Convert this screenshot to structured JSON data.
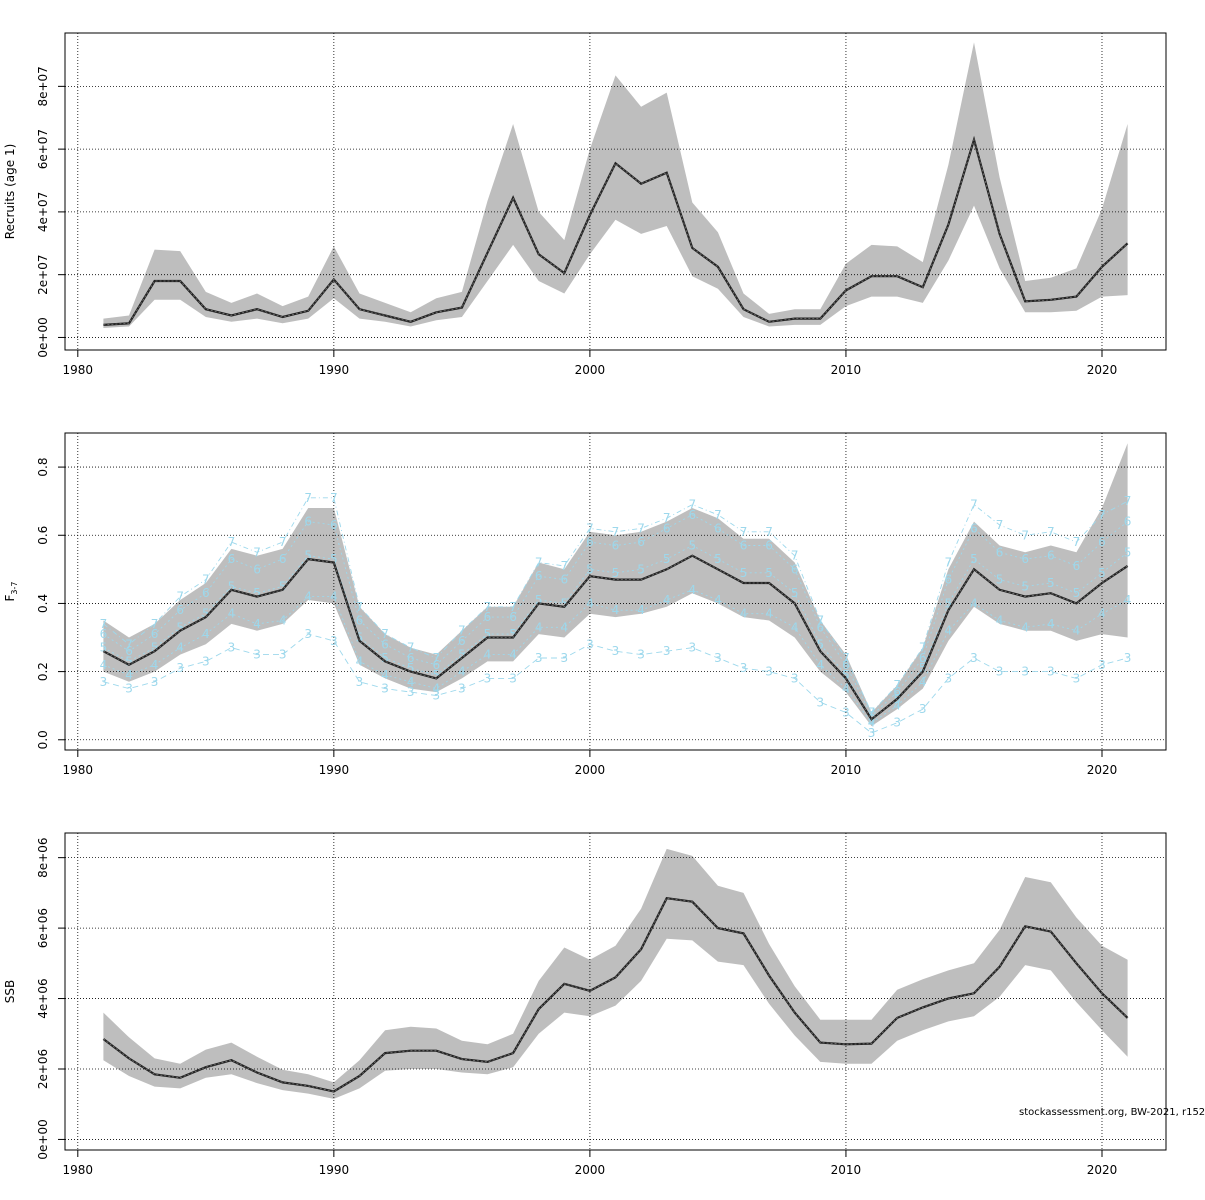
{
  "chart_data": [
    {
      "type": "area",
      "id": "recruits",
      "ylabel": "Recruits (age 1)",
      "xlim": [
        1979.5,
        2022.5
      ],
      "ylim": [
        -4000000,
        97000000
      ],
      "xticks": [
        1980,
        1990,
        2000,
        2010,
        2020
      ],
      "xtick_labels": [
        "1980",
        "1990",
        "2000",
        "2010",
        "2020"
      ],
      "yticks": [
        0,
        20000000,
        40000000,
        60000000,
        80000000
      ],
      "ytick_labels": [
        "0e+00",
        "2e+07",
        "4e+07",
        "6e+07",
        "8e+07"
      ],
      "grid": true,
      "band_color": "#bebebe",
      "line_color": "#222222",
      "x": [
        1981,
        1982,
        1983,
        1984,
        1985,
        1986,
        1987,
        1988,
        1989,
        1990,
        1991,
        1992,
        1993,
        1994,
        1995,
        1996,
        1997,
        1998,
        1999,
        2000,
        2001,
        2002,
        2003,
        2004,
        2005,
        2006,
        2007,
        2008,
        2009,
        2010,
        2011,
        2012,
        2013,
        2014,
        2015,
        2016,
        2017,
        2018,
        2019,
        2020,
        2021
      ],
      "series": [
        {
          "values": [
            4000000,
            4500000,
            18000000,
            18000000,
            9000000,
            7000000,
            9000000,
            6500000,
            8500000,
            18500000,
            9000000,
            7000000,
            5000000,
            8000000,
            9500000,
            27000000,
            44500000,
            26500000,
            20500000,
            39000000,
            55500000,
            49000000,
            52500000,
            28500000,
            22500000,
            9000000,
            5000000,
            6000000,
            6000000,
            15000000,
            19500000,
            19500000,
            16000000,
            36000000,
            63000000,
            33000000,
            11500000,
            12000000,
            13000000,
            22500000,
            30000000
          ],
          "lower": [
            3000000,
            3500000,
            12000000,
            12000000,
            6500000,
            5000000,
            6000000,
            4500000,
            6000000,
            12500000,
            6000000,
            5000000,
            3500000,
            5500000,
            6500000,
            18000000,
            29500000,
            18000000,
            14000000,
            26500000,
            37500000,
            33000000,
            35500000,
            19500000,
            15500000,
            6500000,
            3500000,
            4000000,
            4000000,
            10000000,
            13000000,
            13000000,
            11000000,
            24500000,
            42000000,
            22000000,
            8000000,
            8000000,
            8500000,
            13000000,
            13500000
          ],
          "upper": [
            6000000,
            7000000,
            28000000,
            27500000,
            14500000,
            11000000,
            14000000,
            10000000,
            13000000,
            29000000,
            14000000,
            11000000,
            8000000,
            12500000,
            14500000,
            43500000,
            68000000,
            40000000,
            31000000,
            60000000,
            83500000,
            73500000,
            78000000,
            43000000,
            33500000,
            14000000,
            7500000,
            9000000,
            9000000,
            23500000,
            29500000,
            29000000,
            24000000,
            55000000,
            94000000,
            51000000,
            18000000,
            19000000,
            22000000,
            41000000,
            68000000
          ]
        }
      ]
    },
    {
      "type": "area",
      "id": "fishing-mortality",
      "ylabel_main": "F",
      "ylabel_sub": "3-7",
      "xlim": [
        1979.5,
        2022.5
      ],
      "ylim": [
        -0.03,
        0.9
      ],
      "xticks": [
        1980,
        1990,
        2000,
        2010,
        2020
      ],
      "xtick_labels": [
        "1980",
        "1990",
        "2000",
        "2010",
        "2020"
      ],
      "yticks": [
        0,
        0.2,
        0.4,
        0.6,
        0.8
      ],
      "ytick_labels": [
        "0.0",
        "0.2",
        "0.4",
        "0.6",
        "0.8"
      ],
      "grid": true,
      "band_color": "#bebebe",
      "line_color": "#222222",
      "age_color": "#9dd8ec",
      "x": [
        1981,
        1982,
        1983,
        1984,
        1985,
        1986,
        1987,
        1988,
        1989,
        1990,
        1991,
        1992,
        1993,
        1994,
        1995,
        1996,
        1997,
        1998,
        1999,
        2000,
        2001,
        2002,
        2003,
        2004,
        2005,
        2006,
        2007,
        2008,
        2009,
        2010,
        2011,
        2012,
        2013,
        2014,
        2015,
        2016,
        2017,
        2018,
        2019,
        2020,
        2021
      ],
      "series": [
        {
          "values": [
            0.26,
            0.22,
            0.26,
            0.32,
            0.36,
            0.44,
            0.42,
            0.44,
            0.53,
            0.52,
            0.29,
            0.23,
            0.2,
            0.18,
            0.24,
            0.3,
            0.3,
            0.4,
            0.39,
            0.48,
            0.47,
            0.47,
            0.5,
            0.54,
            0.5,
            0.46,
            0.46,
            0.4,
            0.26,
            0.18,
            0.06,
            0.12,
            0.2,
            0.38,
            0.5,
            0.44,
            0.42,
            0.43,
            0.4,
            0.46,
            0.51
          ],
          "lower": [
            0.2,
            0.17,
            0.2,
            0.25,
            0.28,
            0.34,
            0.32,
            0.34,
            0.41,
            0.4,
            0.22,
            0.18,
            0.15,
            0.14,
            0.18,
            0.23,
            0.23,
            0.31,
            0.3,
            0.37,
            0.36,
            0.37,
            0.39,
            0.43,
            0.4,
            0.36,
            0.35,
            0.3,
            0.2,
            0.14,
            0.04,
            0.09,
            0.15,
            0.29,
            0.39,
            0.34,
            0.32,
            0.32,
            0.29,
            0.31,
            0.3
          ],
          "upper": [
            0.35,
            0.3,
            0.34,
            0.41,
            0.46,
            0.56,
            0.54,
            0.56,
            0.68,
            0.68,
            0.39,
            0.31,
            0.27,
            0.25,
            0.32,
            0.39,
            0.39,
            0.52,
            0.5,
            0.61,
            0.6,
            0.61,
            0.64,
            0.68,
            0.65,
            0.59,
            0.59,
            0.52,
            0.35,
            0.25,
            0.08,
            0.16,
            0.27,
            0.5,
            0.64,
            0.57,
            0.55,
            0.57,
            0.55,
            0.68,
            0.87
          ]
        }
      ],
      "age_series": [
        {
          "name": "3",
          "values": [
            0.17,
            0.15,
            0.17,
            0.21,
            0.23,
            0.27,
            0.25,
            0.25,
            0.31,
            0.29,
            0.17,
            0.15,
            0.14,
            0.13,
            0.15,
            0.18,
            0.18,
            0.24,
            0.24,
            0.28,
            0.26,
            0.25,
            0.26,
            0.27,
            0.24,
            0.21,
            0.2,
            0.18,
            0.11,
            0.08,
            0.02,
            0.05,
            0.09,
            0.18,
            0.24,
            0.2,
            0.2,
            0.2,
            0.18,
            0.22,
            0.24
          ]
        },
        {
          "name": "4",
          "values": [
            0.22,
            0.19,
            0.22,
            0.27,
            0.31,
            0.37,
            0.34,
            0.35,
            0.42,
            0.42,
            0.23,
            0.19,
            0.17,
            0.15,
            0.2,
            0.25,
            0.25,
            0.33,
            0.33,
            0.4,
            0.38,
            0.38,
            0.41,
            0.44,
            0.41,
            0.37,
            0.37,
            0.33,
            0.22,
            0.15,
            0.05,
            0.1,
            0.17,
            0.32,
            0.4,
            0.35,
            0.33,
            0.34,
            0.32,
            0.37,
            0.41
          ]
        },
        {
          "name": "5",
          "values": [
            0.27,
            0.23,
            0.27,
            0.33,
            0.37,
            0.45,
            0.43,
            0.45,
            0.54,
            0.53,
            0.3,
            0.24,
            0.21,
            0.19,
            0.25,
            0.31,
            0.31,
            0.41,
            0.4,
            0.5,
            0.49,
            0.5,
            0.53,
            0.57,
            0.53,
            0.49,
            0.49,
            0.43,
            0.28,
            0.19,
            0.06,
            0.12,
            0.21,
            0.4,
            0.53,
            0.47,
            0.45,
            0.46,
            0.43,
            0.49,
            0.55
          ]
        },
        {
          "name": "6",
          "values": [
            0.31,
            0.26,
            0.31,
            0.38,
            0.43,
            0.53,
            0.5,
            0.53,
            0.64,
            0.63,
            0.35,
            0.28,
            0.24,
            0.22,
            0.29,
            0.36,
            0.36,
            0.48,
            0.47,
            0.58,
            0.57,
            0.58,
            0.62,
            0.66,
            0.62,
            0.57,
            0.57,
            0.5,
            0.33,
            0.22,
            0.07,
            0.14,
            0.24,
            0.47,
            0.62,
            0.55,
            0.53,
            0.54,
            0.51,
            0.58,
            0.64
          ]
        },
        {
          "name": "7",
          "values": [
            0.34,
            0.28,
            0.34,
            0.42,
            0.47,
            0.58,
            0.55,
            0.58,
            0.71,
            0.71,
            0.39,
            0.31,
            0.27,
            0.24,
            0.32,
            0.39,
            0.39,
            0.52,
            0.51,
            0.62,
            0.61,
            0.62,
            0.65,
            0.69,
            0.66,
            0.61,
            0.61,
            0.54,
            0.35,
            0.24,
            0.08,
            0.16,
            0.27,
            0.52,
            0.69,
            0.63,
            0.6,
            0.61,
            0.58,
            0.66,
            0.7
          ]
        }
      ]
    },
    {
      "type": "area",
      "id": "ssb",
      "ylabel": "SSB",
      "xlim": [
        1979.5,
        2022.5
      ],
      "ylim": [
        -300000,
        8700000
      ],
      "xticks": [
        1980,
        1990,
        2000,
        2010,
        2020
      ],
      "xtick_labels": [
        "1980",
        "1990",
        "2000",
        "2010",
        "2020"
      ],
      "yticks": [
        0,
        2000000,
        4000000,
        6000000,
        8000000
      ],
      "ytick_labels": [
        "0e+00",
        "2e+06",
        "4e+06",
        "6e+06",
        "8e+06"
      ],
      "grid": true,
      "band_color": "#bebebe",
      "line_color": "#222222",
      "x": [
        1981,
        1982,
        1983,
        1984,
        1985,
        1986,
        1987,
        1988,
        1989,
        1990,
        1991,
        1992,
        1993,
        1994,
        1995,
        1996,
        1997,
        1998,
        1999,
        2000,
        2001,
        2002,
        2003,
        2004,
        2005,
        2006,
        2007,
        2008,
        2009,
        2010,
        2011,
        2012,
        2013,
        2014,
        2015,
        2016,
        2017,
        2018,
        2019,
        2020,
        2021
      ],
      "series": [
        {
          "values": [
            2850000,
            2300000,
            1850000,
            1750000,
            2050000,
            2250000,
            1900000,
            1620000,
            1520000,
            1360000,
            1800000,
            2450000,
            2520000,
            2520000,
            2280000,
            2200000,
            2450000,
            3700000,
            4420000,
            4220000,
            4600000,
            5400000,
            6850000,
            6750000,
            6000000,
            5850000,
            4650000,
            3600000,
            2750000,
            2700000,
            2720000,
            3450000,
            3750000,
            4000000,
            4150000,
            4900000,
            6050000,
            5900000,
            5000000,
            4150000,
            3450000
          ],
          "lower": [
            2250000,
            1800000,
            1500000,
            1450000,
            1750000,
            1850000,
            1600000,
            1400000,
            1300000,
            1150000,
            1450000,
            1950000,
            2000000,
            2000000,
            1900000,
            1850000,
            2050000,
            3000000,
            3600000,
            3500000,
            3800000,
            4500000,
            5700000,
            5650000,
            5050000,
            4950000,
            3850000,
            2950000,
            2200000,
            2150000,
            2150000,
            2800000,
            3100000,
            3350000,
            3500000,
            4050000,
            4950000,
            4800000,
            3900000,
            3100000,
            2350000
          ],
          "upper": [
            3600000,
            2900000,
            2300000,
            2150000,
            2550000,
            2750000,
            2350000,
            1980000,
            1850000,
            1620000,
            2250000,
            3100000,
            3200000,
            3150000,
            2800000,
            2700000,
            3000000,
            4500000,
            5450000,
            5100000,
            5500000,
            6550000,
            8250000,
            8050000,
            7200000,
            7000000,
            5550000,
            4350000,
            3400000,
            3400000,
            3400000,
            4250000,
            4550000,
            4800000,
            5000000,
            5950000,
            7450000,
            7300000,
            6300000,
            5500000,
            5100000
          ]
        }
      ]
    }
  ],
  "credit": "stockassessment.org, BW-2021, r152"
}
